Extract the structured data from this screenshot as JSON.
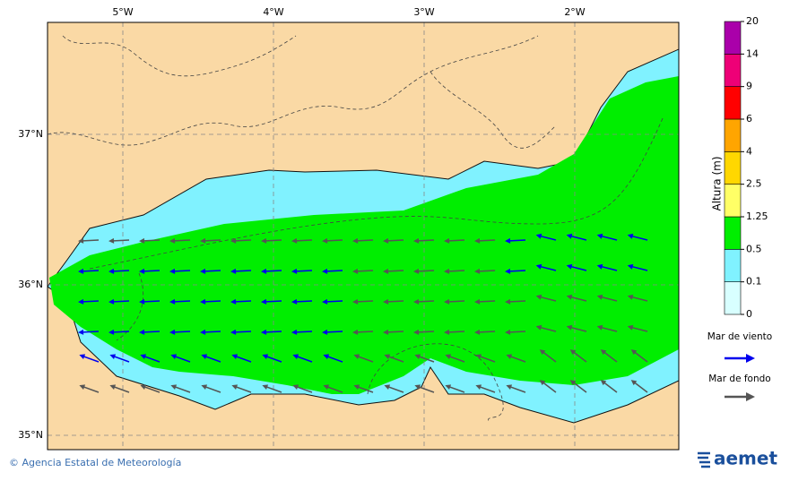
{
  "map": {
    "lon_labels": [
      "5°W",
      "4°W",
      "3°W",
      "2°W"
    ],
    "lat_labels": [
      "37°N",
      "36°N",
      "35°N"
    ],
    "colorbar": {
      "title": "Altura (m)",
      "levels": [
        0,
        0.1,
        0.5,
        1.25,
        2.5,
        4,
        6,
        9,
        14,
        20
      ],
      "colors": [
        "#d8ffff",
        "#80f2ff",
        "#00ee00",
        "#ffff66",
        "#ffd700",
        "#ffa500",
        "#ff0000",
        "#ee0077",
        "#aa00aa"
      ]
    },
    "legend": [
      {
        "label": "Mar de viento",
        "color": "#0000ee"
      },
      {
        "label": "Mar de fondo",
        "color": "#555555"
      }
    ]
  },
  "footer": {
    "credit": "© Agencia Estatal de Meteorología",
    "logo": "aemet"
  }
}
